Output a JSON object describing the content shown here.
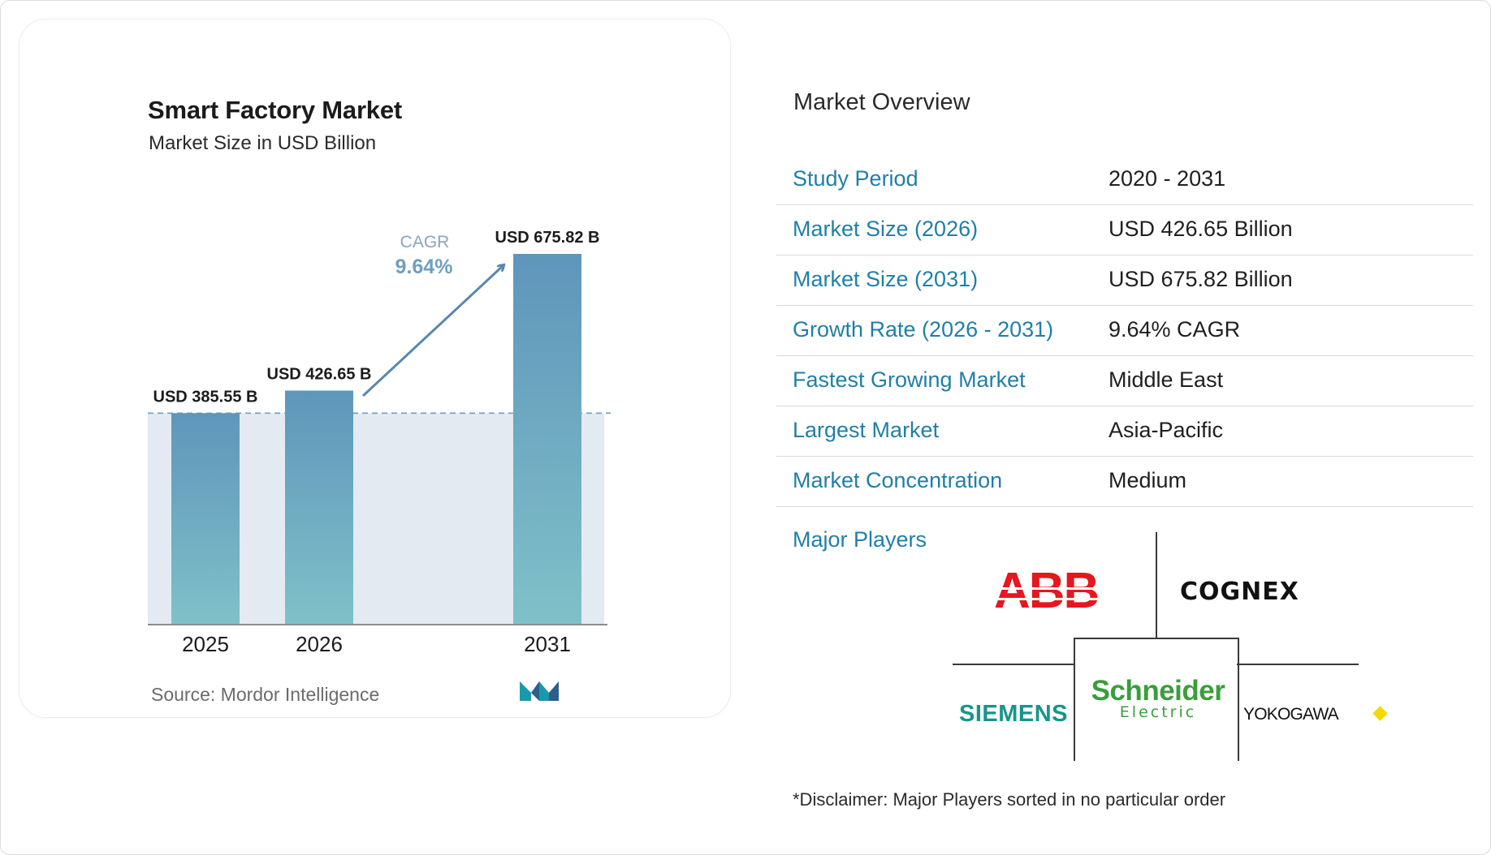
{
  "chart_data": {
    "type": "bar",
    "title": "Smart Factory Market",
    "subtitle": "Market Size in USD Billion",
    "categories": [
      "2025",
      "2026",
      "2031"
    ],
    "values": [
      385.55,
      426.65,
      675.82
    ],
    "value_labels": [
      "USD 385.55 B",
      "USD 426.65 B",
      "USD 675.82 B"
    ],
    "cagr_label": "CAGR",
    "cagr_value": "9.64%",
    "ylim": [
      0,
      675.82
    ],
    "grid": false,
    "bar_color_top": "#5f95bb",
    "bar_color_bottom": "#7fc1c8",
    "shade_color": "#e3eaf2",
    "arrow_color": "#5a88ad"
  },
  "source": "Source:  Mordor Intelligence",
  "overview": {
    "title": "Market Overview",
    "rows": [
      {
        "key": "Study Period",
        "value": "2020 - 2031"
      },
      {
        "key": "Market Size (2026)",
        "value": "USD 426.65 Billion"
      },
      {
        "key": "Market Size (2031)",
        "value": "USD 675.82 Billion"
      },
      {
        "key": "Growth Rate (2026 - 2031)",
        "value": "9.64% CAGR"
      },
      {
        "key": "Fastest Growing Market",
        "value": "Middle East"
      },
      {
        "key": "Largest Market",
        "value": "Asia-Pacific"
      },
      {
        "key": "Market Concentration",
        "value": "Medium"
      }
    ]
  },
  "players": {
    "title": "Major Players",
    "logos": {
      "abb": "ABB",
      "cognex": "COGNEX",
      "siemens": "SIEMENS",
      "schneider_1": "Schneider",
      "schneider_2": "Electric",
      "yokogawa": "YOKOGAWA"
    }
  },
  "disclaimer": "*Disclaimer: Major Players sorted in no particular order",
  "colors": {
    "key_text": "#1f7fa8",
    "abb_red": "#e5171f",
    "siemens": "#16958f",
    "schneider": "#3a9e3a",
    "yokogawa_diamond": "#f5d800"
  }
}
